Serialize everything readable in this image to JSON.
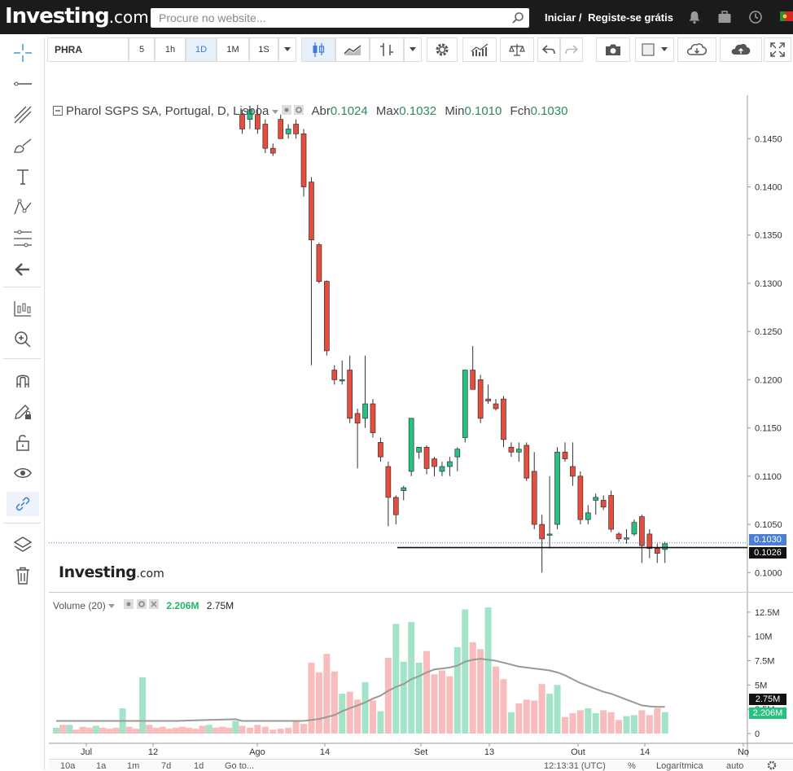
{
  "header": {
    "logo_main": "Investing",
    "logo_suffix": ".com",
    "search_placeholder": "Procure no website...",
    "login_label": "Iniciar /",
    "register_label": "Registe-se grátis",
    "icons": [
      "bell-icon",
      "briefcase-icon",
      "clock-icon",
      "flag-icon"
    ]
  },
  "toolbar": {
    "symbol": "PHRA",
    "intervals": [
      "5",
      "1h",
      "1D",
      "1M",
      "1S"
    ],
    "active_interval": "1D"
  },
  "legend": {
    "title": "Pharol SGPS SA, Portugal, D, Lisboa",
    "open_label": "Abr",
    "open": "0.1024",
    "high_label": "Max",
    "high": "0.1032",
    "low_label": "Min",
    "low": "0.1010",
    "close_label": "Fch",
    "close": "0.1030"
  },
  "volume_legend": {
    "title": "Volume (20)",
    "value_green": "2.206M",
    "value_black": "2.75M"
  },
  "price_tags": {
    "last": "0.1030",
    "line": "0.1026",
    "vol_ma": "2.75M",
    "vol_last": "2.206M"
  },
  "watermark": {
    "main": "Investing",
    "suffix": ".com"
  },
  "bottom_bar": {
    "ranges": [
      "10a",
      "1a",
      "1m",
      "7d",
      "1d",
      "Go to..."
    ],
    "time": "12:13:31 (UTC)",
    "percent": "%",
    "log": "Logarítmica",
    "auto": "auto"
  },
  "colors": {
    "up": "#26c281",
    "down": "#e74c3c",
    "vol_up": "#a3e4c8",
    "vol_down": "#f8bcbc"
  },
  "chart_data": {
    "type": "candlestick",
    "title": "Pharol SGPS SA, Portugal, D, Lisboa",
    "y_ticks": [
      "0.1450",
      "0.1400",
      "0.1350",
      "0.1300",
      "0.1250",
      "0.1200",
      "0.1150",
      "0.1100",
      "0.1050",
      "0.1000"
    ],
    "y_tick_values": [
      0.145,
      0.14,
      0.135,
      0.13,
      0.125,
      0.12,
      0.115,
      0.11,
      0.105,
      0.1
    ],
    "x_ticks": [
      "Jul",
      "12",
      "Ago",
      "14",
      "Set",
      "13",
      "Out",
      "14",
      "No"
    ],
    "ylim": [
      0.098,
      0.1495
    ],
    "candles": [
      [
        0.1475,
        0.148,
        0.1455,
        0.146
      ],
      [
        0.147,
        0.148,
        0.146,
        0.148
      ],
      [
        0.1475,
        0.1485,
        0.1455,
        0.146
      ],
      [
        0.1465,
        0.147,
        0.1435,
        0.144
      ],
      [
        0.144,
        0.1445,
        0.1432,
        0.1435
      ],
      [
        0.147,
        0.1475,
        0.145,
        0.145
      ],
      [
        0.1455,
        0.1465,
        0.145,
        0.146
      ],
      [
        0.1465,
        0.147,
        0.145,
        0.1455
      ],
      [
        0.1455,
        0.146,
        0.139,
        0.14
      ],
      [
        0.1405,
        0.141,
        0.1215,
        0.1345
      ],
      [
        0.134,
        0.1342,
        0.13,
        0.1302
      ],
      [
        0.1302,
        0.1303,
        0.1225,
        0.123
      ],
      [
        0.121,
        0.1215,
        0.1195,
        0.12
      ],
      [
        0.12,
        0.122,
        0.1195,
        0.12
      ],
      [
        0.121,
        0.1225,
        0.1155,
        0.116
      ],
      [
        0.1165,
        0.117,
        0.1108,
        0.1155
      ],
      [
        0.116,
        0.1225,
        0.115,
        0.1175
      ],
      [
        0.1175,
        0.118,
        0.114,
        0.1145
      ],
      [
        0.1135,
        0.114,
        0.1115,
        0.112
      ],
      [
        0.111,
        0.1115,
        0.1048,
        0.1078
      ],
      [
        0.1078,
        0.108,
        0.105,
        0.106
      ],
      [
        0.1085,
        0.109,
        0.1075,
        0.1088
      ],
      [
        0.1105,
        0.116,
        0.11,
        0.116
      ],
      [
        0.1125,
        0.113,
        0.1118,
        0.113
      ],
      [
        0.113,
        0.1132,
        0.1102,
        0.1108
      ],
      [
        0.1118,
        0.112,
        0.11,
        0.111
      ],
      [
        0.1105,
        0.1115,
        0.11,
        0.111
      ],
      [
        0.111,
        0.112,
        0.11,
        0.1115
      ],
      [
        0.112,
        0.113,
        0.1105,
        0.1128
      ],
      [
        0.114,
        0.121,
        0.1135,
        0.121
      ],
      [
        0.121,
        0.1235,
        0.119,
        0.119
      ],
      [
        0.12,
        0.1205,
        0.1155,
        0.116
      ],
      [
        0.118,
        0.1195,
        0.1175,
        0.1178
      ],
      [
        0.1175,
        0.118,
        0.1168,
        0.117
      ],
      [
        0.118,
        0.1183,
        0.113,
        0.1138
      ],
      [
        0.113,
        0.1135,
        0.112,
        0.1125
      ],
      [
        0.1125,
        0.1135,
        0.1115,
        0.1128
      ],
      [
        0.1132,
        0.1135,
        0.1095,
        0.1098
      ],
      [
        0.1105,
        0.1125,
        0.1045,
        0.105
      ],
      [
        0.105,
        0.106,
        0.1,
        0.1035
      ],
      [
        0.104,
        0.11,
        0.1025,
        0.104
      ],
      [
        0.105,
        0.113,
        0.1045,
        0.1125
      ],
      [
        0.1125,
        0.1135,
        0.1115,
        0.1118
      ],
      [
        0.111,
        0.1135,
        0.109,
        0.11
      ],
      [
        0.11,
        0.1105,
        0.105,
        0.1055
      ],
      [
        0.1055,
        0.107,
        0.105,
        0.1062
      ],
      [
        0.1075,
        0.1082,
        0.106,
        0.1078
      ],
      [
        0.1075,
        0.108,
        0.1065,
        0.1068
      ],
      [
        0.108,
        0.1085,
        0.1042,
        0.1045
      ],
      [
        0.104,
        0.1042,
        0.1032,
        0.1035
      ],
      [
        0.1035,
        0.1045,
        0.103,
        0.1036
      ],
      [
        0.104,
        0.1055,
        0.1038,
        0.1052
      ],
      [
        0.1058,
        0.106,
        0.101,
        0.1028
      ],
      [
        0.104,
        0.1045,
        0.1015,
        0.1025
      ],
      [
        0.1025,
        0.103,
        0.101,
        0.102
      ],
      [
        0.1024,
        0.1032,
        0.101,
        0.103
      ]
    ],
    "volume_ticks": [
      "12.5M",
      "10M",
      "7.5M",
      "5M",
      "2.5M",
      "0"
    ],
    "volume_tick_values": [
      12.5,
      10,
      7.5,
      5,
      2.5,
      0
    ],
    "volume_ylim": [
      0,
      13.5
    ],
    "volume_pre": [
      {
        "v": 0.6,
        "up": true
      },
      {
        "v": 0.9,
        "up": false
      },
      {
        "v": 0.9,
        "up": true
      },
      {
        "v": 0.4,
        "up": false
      },
      {
        "v": 0.7,
        "up": false
      },
      {
        "v": 0.6,
        "up": false
      },
      {
        "v": 0.8,
        "up": true
      },
      {
        "v": 0.6,
        "up": false
      },
      {
        "v": 0.5,
        "up": false
      },
      {
        "v": 0.6,
        "up": false
      },
      {
        "v": 2.6,
        "up": true
      },
      {
        "v": 0.7,
        "up": false
      },
      {
        "v": 0.5,
        "up": false
      },
      {
        "v": 5.8,
        "up": true
      },
      {
        "v": 0.9,
        "up": false
      },
      {
        "v": 0.6,
        "up": false
      },
      {
        "v": 0.7,
        "up": false
      },
      {
        "v": 0.5,
        "up": false
      },
      {
        "v": 0.6,
        "up": false
      },
      {
        "v": 0.7,
        "up": false
      },
      {
        "v": 0.6,
        "up": false
      },
      {
        "v": 0.5,
        "up": false
      },
      {
        "v": 0.8,
        "up": false
      },
      {
        "v": 0.9,
        "up": true
      },
      {
        "v": 0.6,
        "up": false
      },
      {
        "v": 0.7,
        "up": false
      },
      {
        "v": 0.6,
        "up": false
      },
      {
        "v": 1.3,
        "up": true
      }
    ],
    "volume": [
      {
        "v": 0.8,
        "up": false
      },
      {
        "v": 0.6,
        "up": false
      },
      {
        "v": 0.9,
        "up": false
      },
      {
        "v": 0.7,
        "up": false
      },
      {
        "v": 0.4,
        "up": false
      },
      {
        "v": 0.5,
        "up": false
      },
      {
        "v": 0.6,
        "up": false
      },
      {
        "v": 1.3,
        "up": false
      },
      {
        "v": 1.0,
        "up": false
      },
      {
        "v": 7.3,
        "up": false
      },
      {
        "v": 6.3,
        "up": false
      },
      {
        "v": 8.2,
        "up": false
      },
      {
        "v": 6.4,
        "up": false
      },
      {
        "v": 4.1,
        "up": true
      },
      {
        "v": 4.3,
        "up": false
      },
      {
        "v": 3.5,
        "up": false
      },
      {
        "v": 5.3,
        "up": true
      },
      {
        "v": 3.4,
        "up": false
      },
      {
        "v": 2.3,
        "up": true
      },
      {
        "v": 7.8,
        "up": false
      },
      {
        "v": 11.3,
        "up": true
      },
      {
        "v": 7.4,
        "up": true
      },
      {
        "v": 11.5,
        "up": true
      },
      {
        "v": 7.3,
        "up": true
      },
      {
        "v": 8.5,
        "up": false
      },
      {
        "v": 6.1,
        "up": false
      },
      {
        "v": 6.5,
        "up": false
      },
      {
        "v": 5.9,
        "up": false
      },
      {
        "v": 8.9,
        "up": true
      },
      {
        "v": 12.8,
        "up": true
      },
      {
        "v": 9.4,
        "up": false
      },
      {
        "v": 8.7,
        "up": false
      },
      {
        "v": 13.0,
        "up": true
      },
      {
        "v": 6.9,
        "up": false
      },
      {
        "v": 5.6,
        "up": false
      },
      {
        "v": 2.2,
        "up": true
      },
      {
        "v": 3.1,
        "up": false
      },
      {
        "v": 3.5,
        "up": false
      },
      {
        "v": 3.4,
        "up": false
      },
      {
        "v": 5.1,
        "up": false
      },
      {
        "v": 4.1,
        "up": true
      },
      {
        "v": 5.0,
        "up": true
      },
      {
        "v": 1.7,
        "up": false
      },
      {
        "v": 2.1,
        "up": false
      },
      {
        "v": 2.4,
        "up": false
      },
      {
        "v": 2.6,
        "up": true
      },
      {
        "v": 2.1,
        "up": true
      },
      {
        "v": 2.4,
        "up": false
      },
      {
        "v": 2.2,
        "up": false
      },
      {
        "v": 1.4,
        "up": false
      },
      {
        "v": 1.8,
        "up": true
      },
      {
        "v": 1.9,
        "up": true
      },
      {
        "v": 2.4,
        "up": false
      },
      {
        "v": 1.9,
        "up": false
      },
      {
        "v": 2.6,
        "up": false
      },
      {
        "v": 2.206,
        "up": true
      }
    ],
    "volume_ma": [
      1.3,
      1.3,
      1.3,
      1.3,
      1.3,
      1.3,
      1.3,
      1.3,
      1.3,
      1.4,
      1.5,
      1.7,
      1.9,
      2.3,
      2.6,
      2.9,
      3.2,
      3.6,
      3.9,
      4.4,
      4.8,
      5.1,
      5.6,
      5.9,
      6.3,
      6.6,
      6.7,
      6.8,
      7.0,
      7.4,
      7.6,
      7.7,
      7.6,
      7.5,
      7.3,
      7.1,
      6.9,
      6.8,
      6.7,
      6.6,
      6.5,
      6.3,
      6.0,
      5.6,
      5.2,
      4.9,
      4.6,
      4.3,
      4.1,
      3.8,
      3.5,
      3.2,
      2.9,
      2.8,
      2.75,
      2.75
    ]
  }
}
